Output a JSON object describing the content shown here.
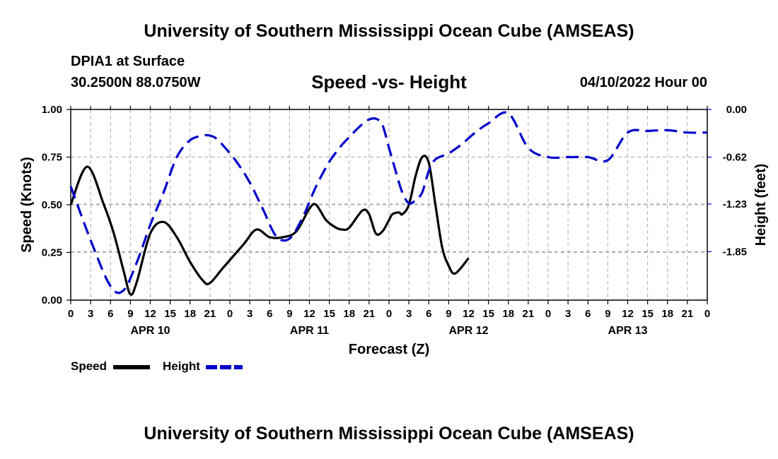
{
  "header": {
    "title": "University of Southern Mississippi Ocean Cube (AMSEAS)",
    "station": "DPIA1 at Surface",
    "coords": "30.2500N  88.0750W",
    "chart_title": "Speed -vs- Height",
    "datetime": "04/10/2022 Hour 00"
  },
  "footer": {
    "title": "University of Southern Mississippi Ocean Cube (AMSEAS)"
  },
  "legend": {
    "speed_label": "Speed",
    "height_label": "Height"
  },
  "colors": {
    "speed": "#000000",
    "height": "#0000cc",
    "grid": "#aaaaaa"
  },
  "chart_data": {
    "type": "line",
    "title": "Speed -vs- Height",
    "xlabel": "Forecast (Z)",
    "ylabel": "Speed (Knots)",
    "y2label": "Height (feet)",
    "xlim": [
      0,
      96
    ],
    "ylim": [
      0,
      1
    ],
    "y2lim": [
      -2.48,
      0
    ],
    "x_ticks": [
      0,
      3,
      6,
      9,
      12,
      15,
      18,
      21,
      24,
      27,
      30,
      33,
      36,
      39,
      42,
      45,
      48,
      51,
      54,
      57,
      60,
      63,
      66,
      69,
      72,
      75,
      78,
      81,
      84,
      87,
      90,
      93,
      96
    ],
    "x_tick_labels": [
      "0",
      "3",
      "6",
      "9",
      "12",
      "15",
      "18",
      "21",
      "0",
      "3",
      "6",
      "9",
      "12",
      "15",
      "18",
      "21",
      "0",
      "3",
      "6",
      "9",
      "12",
      "15",
      "18",
      "21",
      "0",
      "3",
      "6",
      "9",
      "12",
      "15",
      "18",
      "21",
      "0"
    ],
    "day_labels": [
      {
        "x": 12,
        "label": "APR 10"
      },
      {
        "x": 36,
        "label": "APR 11"
      },
      {
        "x": 60,
        "label": "APR 12"
      },
      {
        "x": 84,
        "label": "APR 13"
      }
    ],
    "y_ticks": [
      0,
      0.25,
      0.5,
      0.75,
      1.0
    ],
    "y_tick_labels": [
      "0.00",
      "0.25",
      "0.50",
      "0.75",
      "1.00"
    ],
    "y2_ticks": [
      0,
      -0.62,
      -1.23,
      -1.85
    ],
    "y2_tick_labels": [
      "0.00",
      "-0.62",
      "-1.23",
      "-1.85"
    ],
    "grid": true,
    "series": [
      {
        "name": "Speed",
        "axis": "left",
        "style": "solid",
        "x": [
          0,
          2.5,
          5,
          6.5,
          8,
          9,
          10,
          12,
          14,
          16,
          18,
          20,
          21,
          23,
          26,
          28,
          30,
          32,
          34,
          36,
          37,
          38.5,
          40,
          41,
          42,
          44,
          45,
          46,
          47,
          48,
          48.5,
          49.5,
          50,
          51,
          52,
          53,
          54,
          55,
          56,
          57,
          58,
          60
        ],
        "values": [
          0.5,
          0.7,
          0.5,
          0.35,
          0.15,
          0.03,
          0.1,
          0.35,
          0.41,
          0.33,
          0.2,
          0.1,
          0.09,
          0.17,
          0.29,
          0.37,
          0.33,
          0.33,
          0.36,
          0.48,
          0.5,
          0.42,
          0.38,
          0.37,
          0.38,
          0.47,
          0.45,
          0.35,
          0.36,
          0.42,
          0.45,
          0.46,
          0.45,
          0.5,
          0.65,
          0.75,
          0.72,
          0.5,
          0.28,
          0.18,
          0.14,
          0.22
        ]
      },
      {
        "name": "Height",
        "axis": "right",
        "style": "dashed",
        "x": [
          0,
          3,
          6,
          8,
          10,
          12,
          14,
          16,
          18,
          20,
          21,
          22,
          23,
          25,
          27,
          29,
          31,
          33,
          35,
          37,
          39,
          40,
          41,
          42,
          43,
          44,
          45,
          46,
          47,
          48,
          49,
          50,
          51,
          52,
          53,
          54,
          55,
          57,
          59,
          61,
          63,
          66,
          69,
          72,
          75,
          78,
          81,
          84,
          87,
          90,
          93,
          96
        ],
        "values": [
          -1.0,
          -1.7,
          -2.3,
          -2.35,
          -1.98,
          -1.5,
          -1.08,
          -0.62,
          -0.4,
          -0.34,
          -0.34,
          -0.38,
          -0.47,
          -0.68,
          -0.95,
          -1.3,
          -1.65,
          -1.68,
          -1.4,
          -1.0,
          -0.68,
          -0.56,
          -0.45,
          -0.36,
          -0.27,
          -0.19,
          -0.13,
          -0.12,
          -0.2,
          -0.5,
          -0.8,
          -1.08,
          -1.22,
          -1.18,
          -1.08,
          -0.8,
          -0.65,
          -0.57,
          -0.45,
          -0.3,
          -0.18,
          -0.05,
          -0.5,
          -0.62,
          -0.62,
          -0.62,
          -0.66,
          -0.3,
          -0.28,
          -0.27,
          -0.3,
          -0.3
        ]
      }
    ],
    "legend_position": "bottom-left"
  }
}
